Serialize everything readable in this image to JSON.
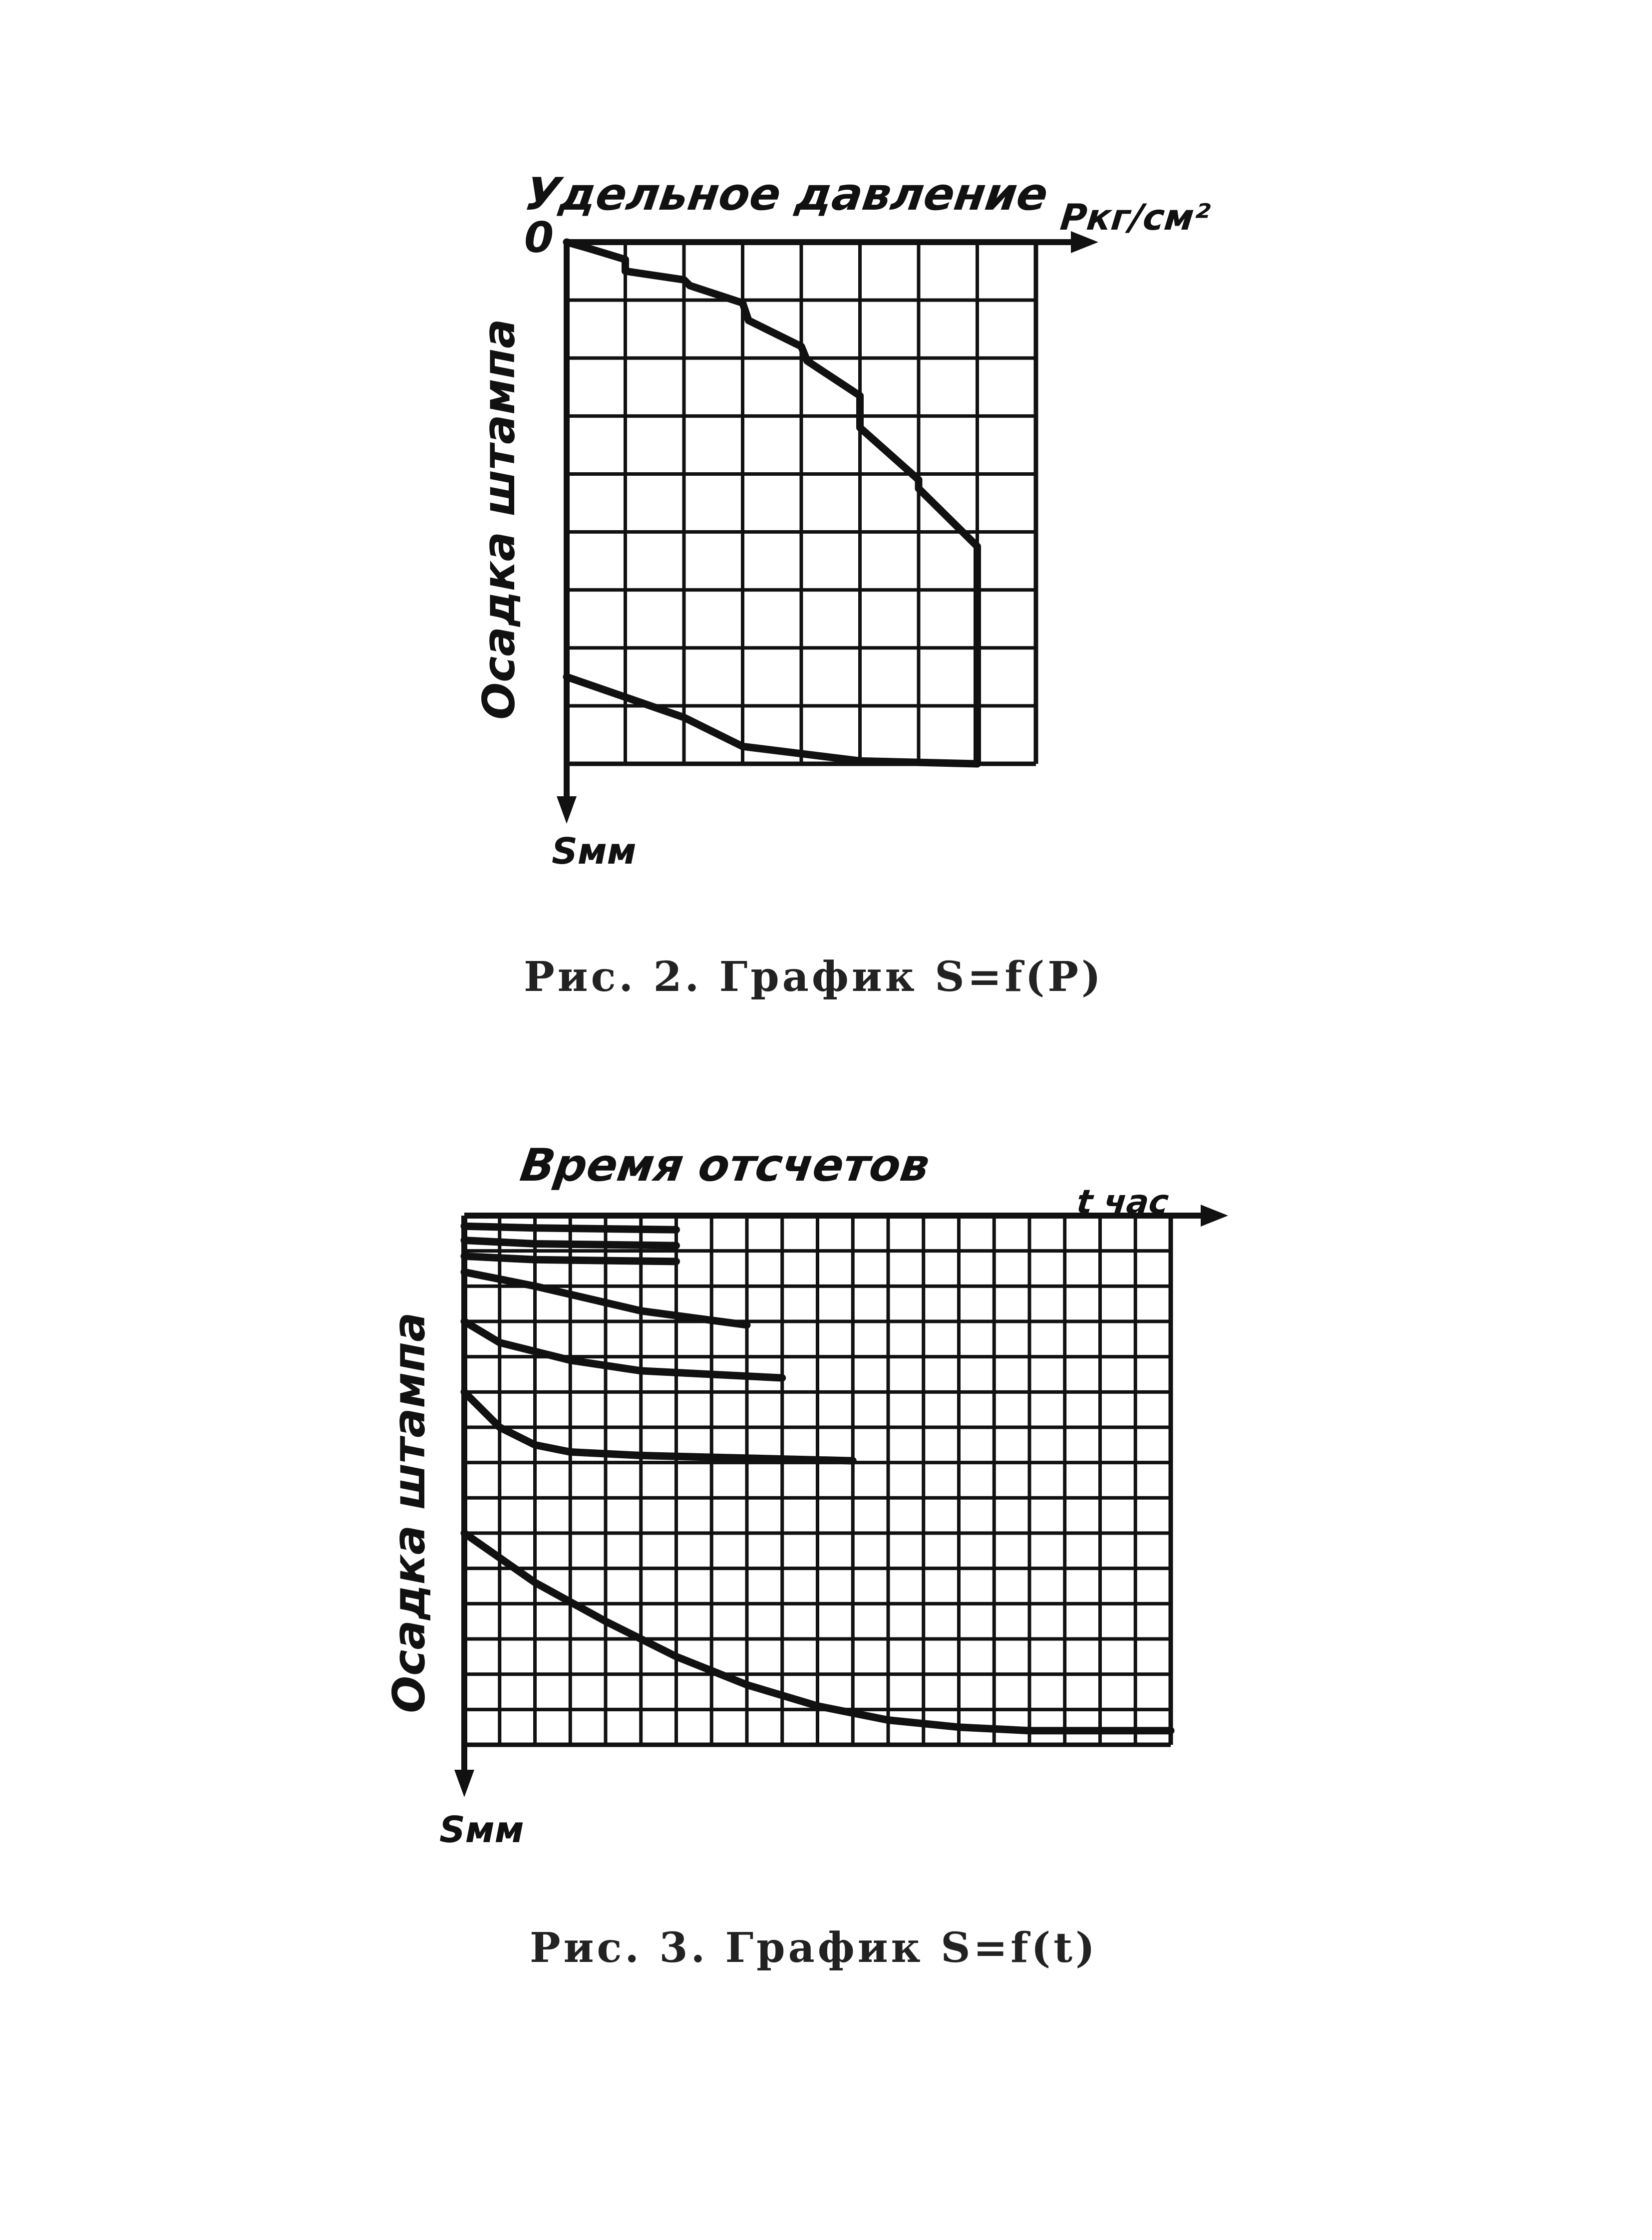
{
  "figure_2": {
    "caption": "Рис. 2. График S=f(P)",
    "x_axis_title": "Удельное давление",
    "x_axis_unit": "Pкг/см²",
    "y_axis_title": "Осадка штампа",
    "y_axis_unit": "Sмм",
    "origin_label": "0"
  },
  "figure_3": {
    "caption": "Рис. 3. График S=f(t)",
    "x_axis_title": "Время отсчетов",
    "x_axis_unit": "t час",
    "y_axis_title": "Осадка штампа",
    "y_axis_unit": "Sмм"
  },
  "chart_data": [
    {
      "type": "line",
      "title": "Рис. 2. График S=f(P)",
      "xlabel": "Удельное давление, Pкг/см²",
      "ylabel": "Осадка штампа, Sмм",
      "x_axis_position": "top",
      "y_axis_direction": "downward",
      "xlim": [
        0,
        8
      ],
      "ylim": [
        0,
        9
      ],
      "grid": true,
      "series": [
        {
          "role": "loading",
          "x": [
            0,
            0.35,
            1.0,
            1.0,
            2.0,
            2.1,
            3.0,
            3.1,
            4.0,
            4.1,
            5.0,
            5.0,
            6.0,
            6.0,
            7.0,
            7.0
          ],
          "y": [
            0,
            0.1,
            0.3,
            0.5,
            0.65,
            0.75,
            1.05,
            1.35,
            1.8,
            2.05,
            2.65,
            3.2,
            4.1,
            4.25,
            5.25,
            9.0
          ]
        },
        {
          "role": "unloading",
          "x": [
            7.0,
            5.0,
            3.0,
            2.0,
            0
          ],
          "y": [
            9.0,
            8.95,
            8.7,
            8.2,
            7.5
          ]
        }
      ]
    },
    {
      "type": "line",
      "title": "Рис. 3. График S=f(t)",
      "xlabel": "Время отсчетов, t час",
      "ylabel": "Осадка штампа, Sмм",
      "x_axis_position": "top",
      "y_axis_direction": "downward",
      "xlim": [
        0,
        20
      ],
      "ylim": [
        0,
        15
      ],
      "grid": true,
      "series": [
        {
          "x": [
            0,
            2,
            6
          ],
          "y": [
            0.3,
            0.35,
            0.4
          ]
        },
        {
          "x": [
            0,
            2,
            6
          ],
          "y": [
            0.7,
            0.8,
            0.85
          ]
        },
        {
          "x": [
            0,
            2,
            6
          ],
          "y": [
            1.15,
            1.25,
            1.3
          ]
        },
        {
          "x": [
            0,
            2,
            5,
            8
          ],
          "y": [
            1.6,
            2.0,
            2.7,
            3.1
          ]
        },
        {
          "x": [
            0,
            1,
            3,
            5,
            9
          ],
          "y": [
            3.0,
            3.6,
            4.1,
            4.4,
            4.6
          ]
        },
        {
          "x": [
            0,
            1,
            2,
            3,
            5,
            11
          ],
          "y": [
            5.0,
            6.0,
            6.5,
            6.7,
            6.8,
            6.95
          ]
        },
        {
          "x": [
            0,
            2,
            4,
            6,
            8,
            10,
            12,
            14,
            16,
            20
          ],
          "y": [
            9.0,
            10.4,
            11.5,
            12.5,
            13.3,
            13.9,
            14.3,
            14.5,
            14.6,
            14.6
          ]
        }
      ]
    }
  ]
}
